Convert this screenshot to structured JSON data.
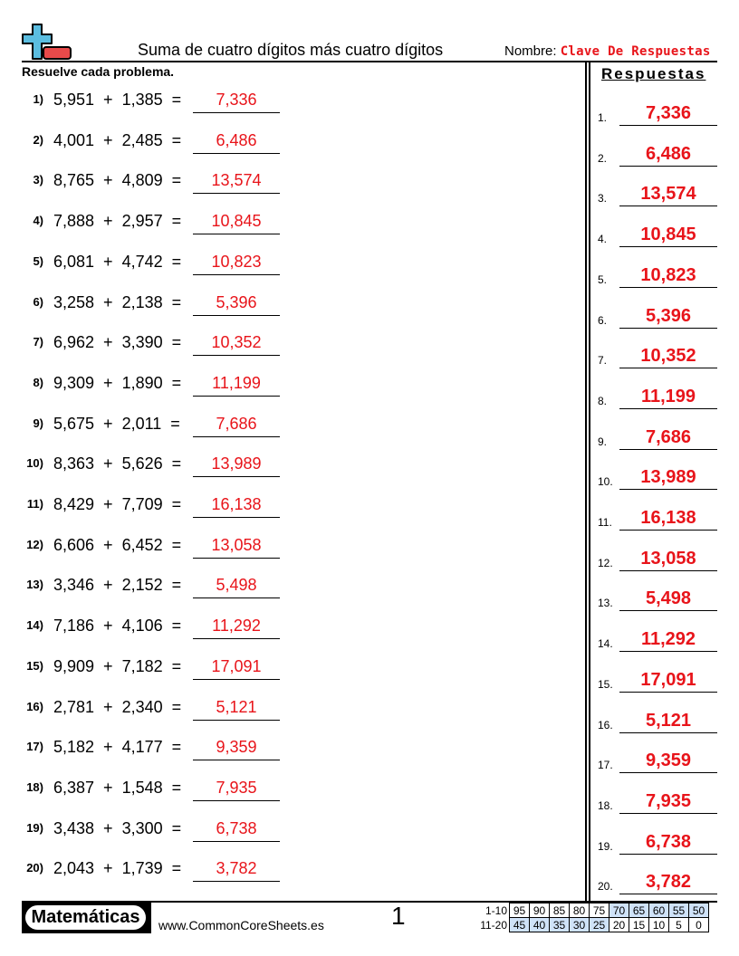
{
  "header": {
    "title": "Suma de cuatro dígitos más cuatro dígitos",
    "name_label": "Nombre:",
    "name_value": "Clave De Respuestas",
    "logo_icon": "plus-minus-icon"
  },
  "instructions": "Resuelve cada problema.",
  "answers_title": "Respuestas",
  "colors": {
    "answer": "#e8141a",
    "logo_plus": "#5bbde0",
    "logo_minus": "#e84a4a",
    "score_highlight": "#cfe2f8"
  },
  "problems": [
    {
      "num": "1)",
      "a": "5,951",
      "b": "1,385",
      "ans": "7,336"
    },
    {
      "num": "2)",
      "a": "4,001",
      "b": "2,485",
      "ans": "6,486"
    },
    {
      "num": "3)",
      "a": "8,765",
      "b": "4,809",
      "ans": "13,574"
    },
    {
      "num": "4)",
      "a": "7,888",
      "b": "2,957",
      "ans": "10,845"
    },
    {
      "num": "5)",
      "a": "6,081",
      "b": "4,742",
      "ans": "10,823"
    },
    {
      "num": "6)",
      "a": "3,258",
      "b": "2,138",
      "ans": "5,396"
    },
    {
      "num": "7)",
      "a": "6,962",
      "b": "3,390",
      "ans": "10,352"
    },
    {
      "num": "8)",
      "a": "9,309",
      "b": "1,890",
      "ans": "11,199"
    },
    {
      "num": "9)",
      "a": "5,675",
      "b": "2,011",
      "ans": "7,686"
    },
    {
      "num": "10)",
      "a": "8,363",
      "b": "5,626",
      "ans": "13,989"
    },
    {
      "num": "11)",
      "a": "8,429",
      "b": "7,709",
      "ans": "16,138"
    },
    {
      "num": "12)",
      "a": "6,606",
      "b": "6,452",
      "ans": "13,058"
    },
    {
      "num": "13)",
      "a": "3,346",
      "b": "2,152",
      "ans": "5,498"
    },
    {
      "num": "14)",
      "a": "7,186",
      "b": "4,106",
      "ans": "11,292"
    },
    {
      "num": "15)",
      "a": "9,909",
      "b": "7,182",
      "ans": "17,091"
    },
    {
      "num": "16)",
      "a": "2,781",
      "b": "2,340",
      "ans": "5,121"
    },
    {
      "num": "17)",
      "a": "5,182",
      "b": "4,177",
      "ans": "9,359"
    },
    {
      "num": "18)",
      "a": "6,387",
      "b": "1,548",
      "ans": "7,935"
    },
    {
      "num": "19)",
      "a": "3,438",
      "b": "3,300",
      "ans": "6,738"
    },
    {
      "num": "20)",
      "a": "2,043",
      "b": "1,739",
      "ans": "3,782"
    }
  ],
  "answer_key": [
    {
      "num": "1.",
      "ans": "7,336"
    },
    {
      "num": "2.",
      "ans": "6,486"
    },
    {
      "num": "3.",
      "ans": "13,574"
    },
    {
      "num": "4.",
      "ans": "10,845"
    },
    {
      "num": "5.",
      "ans": "10,823"
    },
    {
      "num": "6.",
      "ans": "5,396"
    },
    {
      "num": "7.",
      "ans": "10,352"
    },
    {
      "num": "8.",
      "ans": "11,199"
    },
    {
      "num": "9.",
      "ans": "7,686"
    },
    {
      "num": "10.",
      "ans": "13,989"
    },
    {
      "num": "11.",
      "ans": "16,138"
    },
    {
      "num": "12.",
      "ans": "13,058"
    },
    {
      "num": "13.",
      "ans": "5,498"
    },
    {
      "num": "14.",
      "ans": "11,292"
    },
    {
      "num": "15.",
      "ans": "17,091"
    },
    {
      "num": "16.",
      "ans": "5,121"
    },
    {
      "num": "17.",
      "ans": "9,359"
    },
    {
      "num": "18.",
      "ans": "7,935"
    },
    {
      "num": "19.",
      "ans": "6,738"
    },
    {
      "num": "20.",
      "ans": "3,782"
    }
  ],
  "footer": {
    "brand": "Matemáticas",
    "site": "www.CommonCoreSheets.es",
    "page": "1",
    "score_rows": [
      {
        "label": "1-10",
        "values": [
          "95",
          "90",
          "85",
          "80",
          "75",
          "70",
          "65",
          "60",
          "55",
          "50"
        ],
        "highlighted": [
          false,
          false,
          false,
          false,
          false,
          true,
          true,
          true,
          true,
          true
        ]
      },
      {
        "label": "11-20",
        "values": [
          "45",
          "40",
          "35",
          "30",
          "25",
          "20",
          "15",
          "10",
          "5",
          "0"
        ],
        "highlighted": [
          true,
          true,
          true,
          true,
          true,
          false,
          false,
          false,
          false,
          false
        ]
      }
    ]
  }
}
